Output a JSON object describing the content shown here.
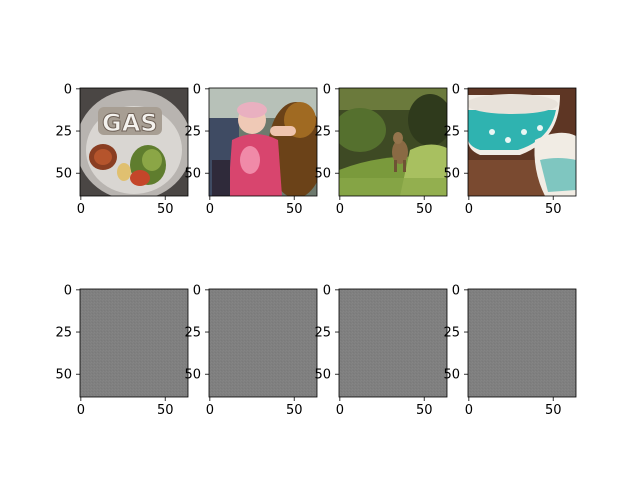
{
  "chart_data": {
    "type": "image-grid",
    "rows": 2,
    "cols": 4,
    "xticks": [
      0,
      50
    ],
    "yticks": [
      0,
      25,
      50
    ],
    "xlim": [
      -0.5,
      63.5
    ],
    "ylim": [
      63.5,
      -0.5
    ],
    "panels": [
      {
        "content": "photo: plate of food with 'GAS' lettering, salsa and salad"
      },
      {
        "content": "photo: child in pink clothing being held"
      },
      {
        "content": "photo: deer in green brush"
      },
      {
        "content": "photo: turquoise patterned ceramic bowls on wood"
      },
      {
        "content": "uniform gray noise image"
      },
      {
        "content": "uniform gray noise image"
      },
      {
        "content": "uniform gray noise image"
      },
      {
        "content": "uniform gray noise image"
      }
    ]
  }
}
